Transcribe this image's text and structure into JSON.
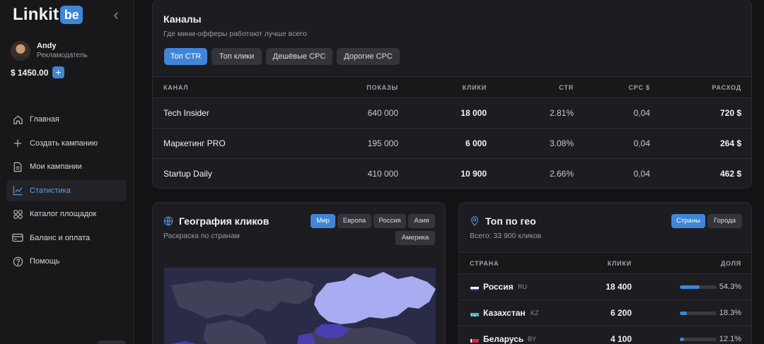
{
  "app": {
    "logo_text": "Linkit",
    "logo_mark": "be"
  },
  "user": {
    "name": "Andy",
    "role": "Рекламодатель",
    "balance": "$ 1450.00",
    "add_label": "+"
  },
  "nav": [
    {
      "label": "Главная",
      "icon": "home-icon",
      "active": false
    },
    {
      "label": "Создать кампанию",
      "icon": "plus-icon",
      "active": false
    },
    {
      "label": "Мои кампании",
      "icon": "document-icon",
      "active": false
    },
    {
      "label": "Статистика",
      "icon": "chart-icon",
      "active": true
    },
    {
      "label": "Каталог площадок",
      "icon": "grid-icon",
      "active": false
    },
    {
      "label": "Баланс и оплата",
      "icon": "card-icon",
      "active": false
    },
    {
      "label": "Помощь",
      "icon": "help-icon",
      "active": false
    }
  ],
  "channels": {
    "title": "Каналы",
    "subtitle": "Где мини-офферы работают лучше всего",
    "chips": [
      "Топ CTR",
      "Топ клики",
      "Дешёвые CPC",
      "Дорогие CPC"
    ],
    "active_chip": 0,
    "columns": [
      "КАНАЛ",
      "ПОКАЗЫ",
      "КЛИКИ",
      "CTR",
      "CPC $",
      "РАСХОД"
    ],
    "rows": [
      [
        "Tech Insider",
        "640 000",
        "18 000",
        "2.81%",
        "0,04",
        "720 $"
      ],
      [
        "Маркетинг PRO",
        "195 000",
        "6 000",
        "3.08%",
        "0,04",
        "264 $"
      ],
      [
        "Startup Daily",
        "410 000",
        "10 900",
        "2.66%",
        "0,04",
        "462 $"
      ]
    ]
  },
  "geography": {
    "title": "География кликов",
    "subtitle": "Раскраска по странам",
    "chips": [
      "Мир",
      "Европа",
      "Россия",
      "Азия",
      "Америка"
    ],
    "active_chip": 0,
    "accent": "#3f86d9",
    "map_fill": "#a9acf0"
  },
  "top_geo": {
    "title": "Топ по гео",
    "subtitle": "Всего: 33 900 кликов",
    "chips": [
      "Страны",
      "Города"
    ],
    "active_chip": 0,
    "columns": [
      "СТРАНА",
      "КЛИКИ",
      "ДОЛЯ"
    ],
    "rows": [
      {
        "country": "Россия",
        "code": "RU",
        "clicks": "18 400",
        "share": "54.3%",
        "share_value": 54.3,
        "flag": "ru-flag-icon"
      },
      {
        "country": "Казахстан",
        "code": "KZ",
        "clicks": "6 200",
        "share": "18.3%",
        "share_value": 18.3,
        "flag": "kz-flag-icon"
      },
      {
        "country": "Беларусь",
        "code": "BY",
        "clicks": "4 100",
        "share": "12.1%",
        "share_value": 12.1,
        "flag": "by-flag-icon"
      }
    ]
  }
}
